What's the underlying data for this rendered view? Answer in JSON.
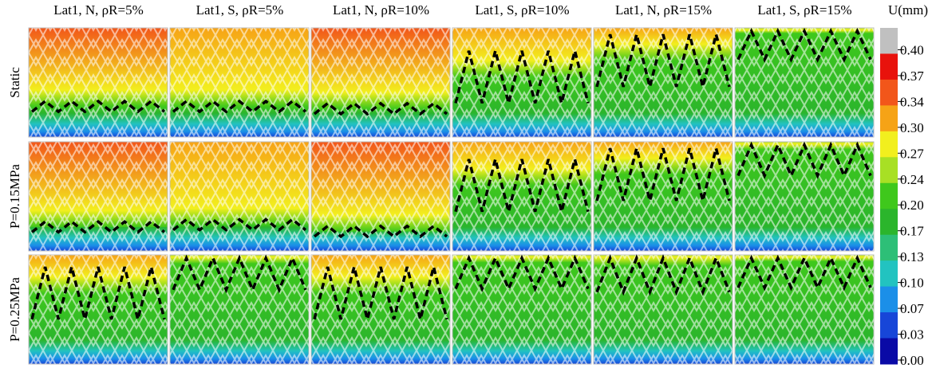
{
  "figure": {
    "columns": [
      "Lat1, N, ρR=5%",
      "Lat1, S, ρR=5%",
      "Lat1, N, ρR=10%",
      "Lat1, S, ρR=10%",
      "Lat1, N, ρR=15%",
      "Lat1, S, ρR=15%"
    ],
    "rows": [
      "Static",
      "P=0.15MPa",
      "P=0.25MPa"
    ],
    "legend": {
      "title": "U(mm)",
      "ticks": [
        "0.40",
        "0.37",
        "0.34",
        "0.30",
        "0.27",
        "0.24",
        "0.20",
        "0.17",
        "0.13",
        "0.10",
        "0.07",
        "0.03",
        "0.00"
      ],
      "colors": [
        "#c0c0c0",
        "#e8120c",
        "#f2561a",
        "#f6a316",
        "#f2ef1e",
        "#a8e024",
        "#3fc81c",
        "#2bb52c",
        "#2dbf77",
        "#22c3c0",
        "#1b8fe8",
        "#1746d8",
        "#0a0aa6"
      ]
    }
  }
}
